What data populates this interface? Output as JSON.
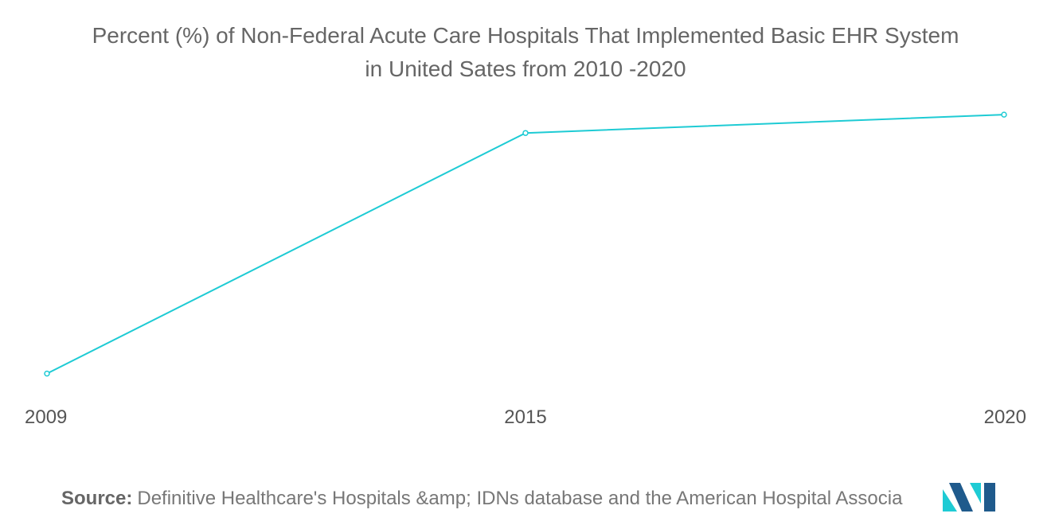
{
  "chart_data": {
    "type": "line",
    "title_line1": "Percent (%) of Non-Federal Acute Care Hospitals That Implemented Basic EHR System",
    "title_line2": "in United Sates from 2010 -2020",
    "xlabel": "",
    "ylabel": "",
    "categories": [
      "2009",
      "2015",
      "2020"
    ],
    "values": [
      12,
      84,
      89.5
    ],
    "ylim": [
      0,
      100
    ],
    "grid": false,
    "legend": "none",
    "line_color": "#1ECBD4"
  },
  "source": {
    "label": "Source:",
    "text": "Definitive Healthcare's Hospitals &amp; IDNs database and the American Hospital Associa"
  },
  "logo": {
    "icon": "mordor-intelligence-logo-icon",
    "colors": [
      "#1ECBD4",
      "#1F5A8C"
    ]
  }
}
